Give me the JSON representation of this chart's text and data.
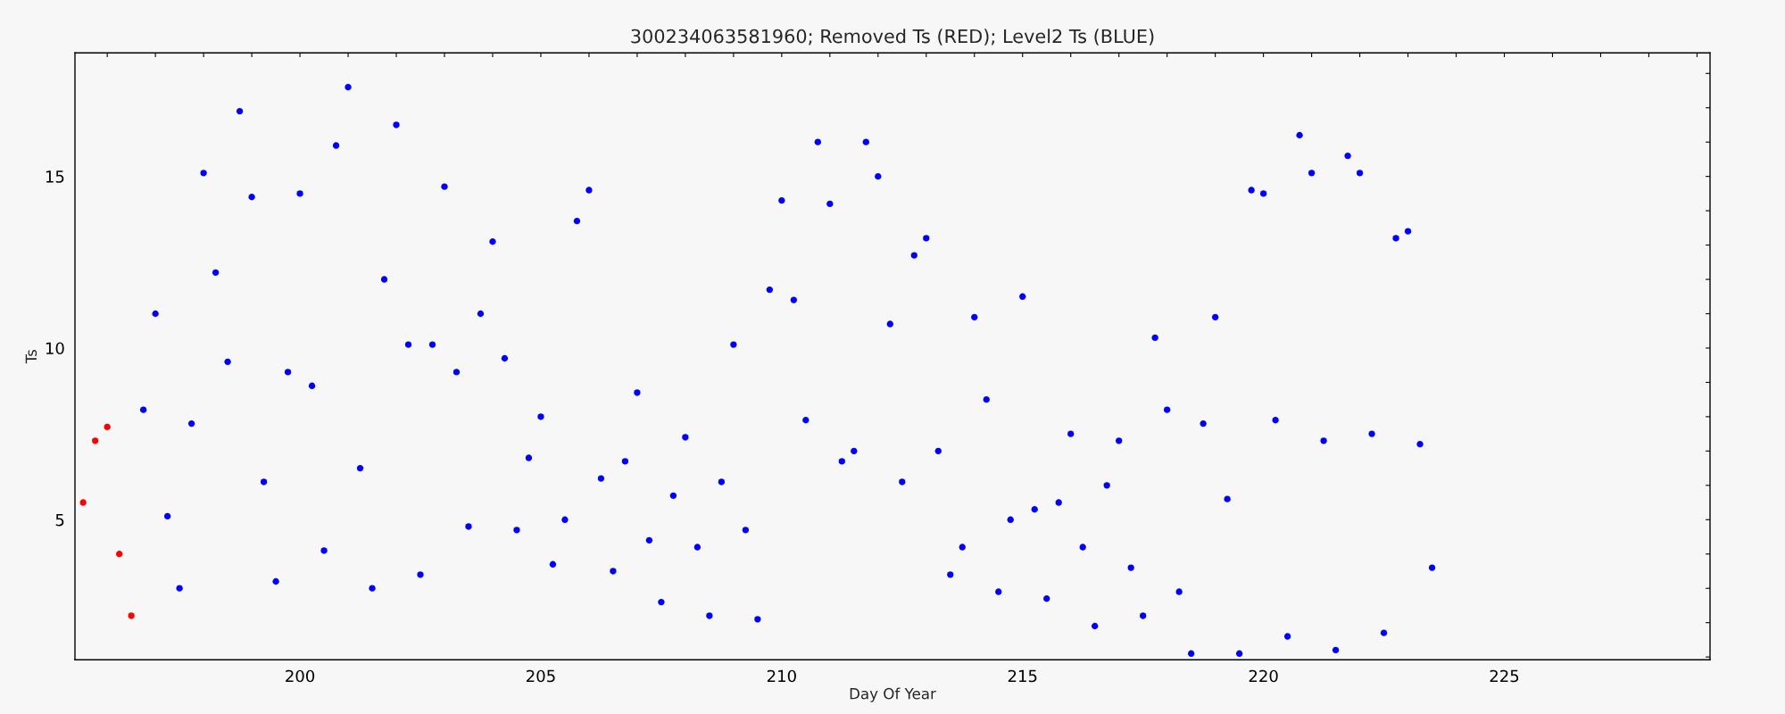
{
  "chart_data": {
    "type": "scatter",
    "title": "300234063581960; Removed Ts (RED); Level2 Ts (BLUE)",
    "xlabel": "Day Of Year",
    "ylabel": "Ts",
    "xlim": [
      195.33,
      229.27
    ],
    "ylim": [
      0.92,
      18.6
    ],
    "xticks": [
      {
        "value": 196,
        "label": null
      },
      {
        "value": 197,
        "label": null
      },
      {
        "value": 198,
        "label": null
      },
      {
        "value": 199,
        "label": null
      },
      200,
      {
        "value": 201,
        "label": null
      },
      {
        "value": 202,
        "label": null
      },
      {
        "value": 203,
        "label": null
      },
      {
        "value": 204,
        "label": null
      },
      205,
      {
        "value": 206,
        "label": null
      },
      {
        "value": 207,
        "label": null
      },
      {
        "value": 208,
        "label": null
      },
      {
        "value": 209,
        "label": null
      },
      210,
      {
        "value": 211,
        "label": null
      },
      {
        "value": 212,
        "label": null
      },
      {
        "value": 213,
        "label": null
      },
      {
        "value": 214,
        "label": null
      },
      215,
      {
        "value": 216,
        "label": null
      },
      {
        "value": 217,
        "label": null
      },
      {
        "value": 218,
        "label": null
      },
      {
        "value": 219,
        "label": null
      },
      220,
      {
        "value": 221,
        "label": null
      },
      {
        "value": 222,
        "label": null
      },
      {
        "value": 223,
        "label": null
      },
      {
        "value": 224,
        "label": null
      },
      225,
      {
        "value": 226,
        "label": null
      },
      {
        "value": 227,
        "label": null
      },
      {
        "value": 228,
        "label": null
      },
      {
        "value": 229,
        "label": null
      }
    ],
    "yticks": [
      {
        "value": 1,
        "label": null
      },
      {
        "value": 2,
        "label": null
      },
      {
        "value": 3,
        "label": null
      },
      {
        "value": 4,
        "label": null
      },
      5,
      {
        "value": 6,
        "label": null
      },
      {
        "value": 7,
        "label": null
      },
      {
        "value": 8,
        "label": null
      },
      {
        "value": 9,
        "label": null
      },
      10,
      {
        "value": 11,
        "label": null
      },
      {
        "value": 12,
        "label": null
      },
      {
        "value": 13,
        "label": null
      },
      {
        "value": 14,
        "label": null
      },
      15,
      {
        "value": 16,
        "label": null
      },
      {
        "value": 17,
        "label": null
      },
      {
        "value": 18,
        "label": null
      }
    ],
    "marker": "circle",
    "grid": false,
    "series": [
      {
        "color": "#ff0000",
        "x": [
          195.5,
          195.75,
          196.0,
          196.25,
          196.5
        ],
        "values": [
          5.5,
          7.3,
          7.7,
          4.0,
          2.2
        ]
      },
      {
        "color": "#0000ff",
        "x": [
          196.75,
          197.0,
          197.25,
          197.5,
          197.75,
          198.0,
          198.25,
          198.5,
          198.75,
          199.0,
          199.25,
          199.5,
          199.75,
          200.0,
          200.25,
          200.5,
          200.75,
          201.0,
          201.25,
          201.5,
          201.75,
          202.0,
          202.25,
          202.5,
          202.75,
          203.0,
          203.25,
          203.5,
          203.75,
          204.0,
          204.25,
          204.5,
          204.75,
          205.0,
          205.25,
          205.5,
          205.75,
          206.0,
          206.25,
          206.5,
          206.75,
          207.0,
          207.25,
          207.5,
          207.75,
          208.0,
          208.25,
          208.5,
          208.75,
          209.0,
          209.25,
          209.5,
          209.75,
          210.0,
          210.25,
          210.5,
          210.75,
          211.0,
          211.25,
          211.5,
          211.75,
          212.0,
          212.25,
          212.5,
          212.75,
          213.0,
          213.25,
          213.5,
          213.75,
          214.0,
          214.25,
          214.5,
          214.75,
          215.0,
          215.25,
          215.5,
          215.75,
          216.0,
          216.25,
          216.5,
          216.75,
          217.0,
          217.25,
          217.5,
          217.75,
          218.0,
          218.25,
          218.5,
          218.75,
          219.0,
          219.25,
          219.5,
          219.75,
          220.0,
          220.25,
          220.5,
          220.75,
          221.0,
          221.25,
          221.5,
          221.75,
          222.0,
          222.25,
          222.5,
          222.75,
          223.0,
          223.25,
          223.5
        ],
        "values": [
          8.2,
          11.0,
          5.1,
          3.0,
          7.8,
          15.1,
          12.2,
          9.6,
          16.9,
          14.4,
          6.1,
          3.2,
          9.3,
          14.5,
          8.9,
          4.1,
          15.9,
          17.6,
          6.5,
          3.0,
          12.0,
          16.5,
          10.1,
          3.4,
          10.1,
          14.7,
          9.3,
          4.8,
          11.0,
          13.1,
          9.7,
          4.7,
          6.8,
          8.0,
          3.7,
          5.0,
          13.7,
          14.6,
          6.2,
          3.5,
          6.7,
          8.7,
          4.4,
          2.6,
          5.7,
          7.4,
          4.2,
          2.2,
          6.1,
          10.1,
          4.7,
          2.1,
          11.7,
          14.3,
          11.4,
          7.9,
          16.0,
          14.2,
          6.7,
          7.0,
          16.0,
          15.0,
          10.7,
          6.1,
          12.7,
          13.2,
          7.0,
          3.4,
          4.2,
          10.9,
          8.5,
          2.9,
          5.0,
          11.5,
          5.3,
          2.7,
          5.5,
          7.5,
          4.2,
          1.9,
          6.0,
          7.3,
          3.6,
          2.2,
          10.3,
          8.2,
          2.9,
          1.1,
          7.8,
          10.9,
          5.6,
          1.1,
          14.6,
          14.5,
          7.9,
          1.6,
          16.2,
          15.1,
          7.3,
          1.2,
          15.6,
          15.1,
          7.5,
          1.7,
          13.2,
          13.4,
          7.2,
          3.6
        ]
      }
    ]
  }
}
